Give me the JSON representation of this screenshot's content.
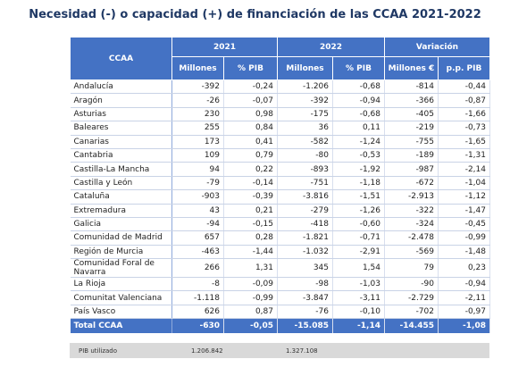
{
  "header": {
    "title": "Necesidad (-) o capacidad (+) de financiación de las CCAA 2021-2022"
  },
  "table": {
    "col_header": "CCAA",
    "groups": [
      "2021",
      "2022",
      "Variación"
    ],
    "subheaders": [
      "Millones",
      "% PIB",
      "Millones",
      "% PIB",
      "Millones €",
      "p.p. PIB"
    ],
    "rows": [
      [
        "Andalucía",
        "-392",
        "-0,24",
        "-1.206",
        "-0,68",
        "-814",
        "-0,44"
      ],
      [
        "Aragón",
        "-26",
        "-0,07",
        "-392",
        "-0,94",
        "-366",
        "-0,87"
      ],
      [
        "Asturias",
        "230",
        "0,98",
        "-175",
        "-0,68",
        "-405",
        "-1,66"
      ],
      [
        "Baleares",
        "255",
        "0,84",
        "36",
        "0,11",
        "-219",
        "-0,73"
      ],
      [
        "Canarias",
        "173",
        "0,41",
        "-582",
        "-1,24",
        "-755",
        "-1,65"
      ],
      [
        "Cantabria",
        "109",
        "0,79",
        "-80",
        "-0,53",
        "-189",
        "-1,31"
      ],
      [
        "Castilla-La Mancha",
        "94",
        "0,22",
        "-893",
        "-1,92",
        "-987",
        "-2,14"
      ],
      [
        "Castilla y León",
        "-79",
        "-0,14",
        "-751",
        "-1,18",
        "-672",
        "-1,04"
      ],
      [
        "Cataluña",
        "-903",
        "-0,39",
        "-3.816",
        "-1,51",
        "-2.913",
        "-1,12"
      ],
      [
        "Extremadura",
        "43",
        "0,21",
        "-279",
        "-1,26",
        "-322",
        "-1,47"
      ],
      [
        "Galicia",
        "-94",
        "-0,15",
        "-418",
        "-0,60",
        "-324",
        "-0,45"
      ],
      [
        "Comunidad de Madrid",
        "657",
        "0,28",
        "-1.821",
        "-0,71",
        "-2.478",
        "-0,99"
      ],
      [
        "Región de Murcia",
        "-463",
        "-1,44",
        "-1.032",
        "-2,91",
        "-569",
        "-1,48"
      ],
      [
        "Comunidad Foral de Navarra",
        "266",
        "1,31",
        "345",
        "1,54",
        "79",
        "0,23"
      ],
      [
        "La Rioja",
        "-8",
        "-0,09",
        "-98",
        "-1,03",
        "-90",
        "-0,94"
      ],
      [
        "Comunitat Valenciana",
        "-1.118",
        "-0,99",
        "-3.847",
        "-3,11",
        "-2.729",
        "-2,11"
      ],
      [
        "País Vasco",
        "626",
        "0,87",
        "-76",
        "-0,10",
        "-702",
        "-0,97"
      ]
    ],
    "total": [
      "Total CCAA",
      "-630",
      "-0,05",
      "-15.085",
      "-1,14",
      "-14.455",
      "-1,08"
    ]
  },
  "footer": {
    "label": "PIB utilizado",
    "values": [
      "1.206.842",
      "1.327.108"
    ]
  }
}
